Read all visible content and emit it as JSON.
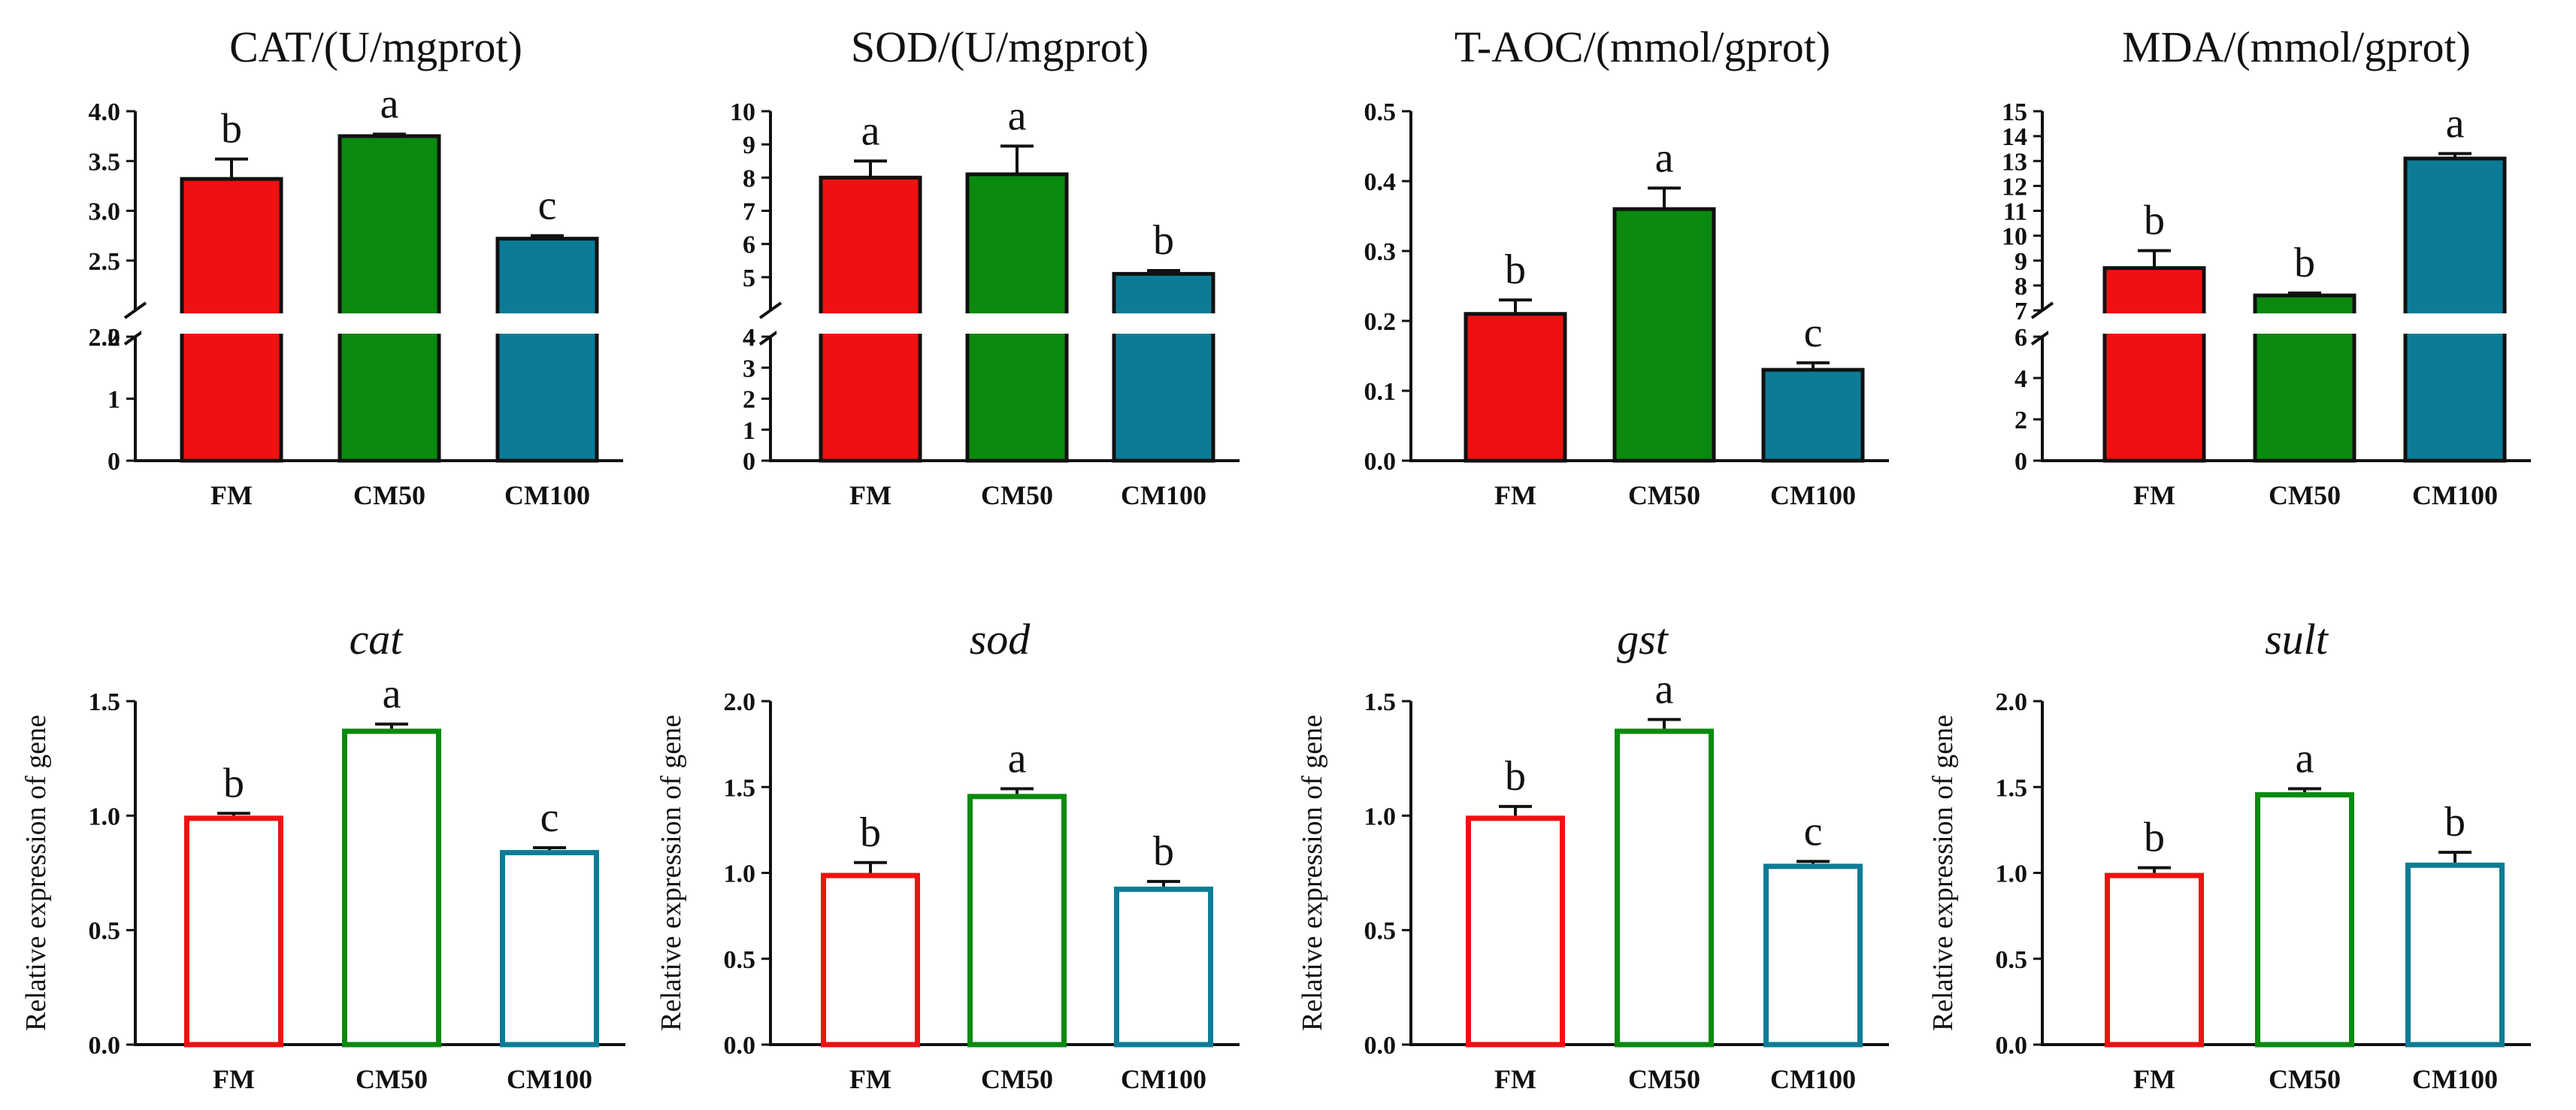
{
  "colors": {
    "FM": "#ee1111",
    "CM50": "#0a8a0f",
    "CM100": "#0c7c96",
    "axis": "#111111"
  },
  "chart_data": [
    {
      "type": "bar",
      "title": "CAT/(U/mgprot)",
      "italic": false,
      "filled": true,
      "categories": [
        "FM",
        "CM50",
        "CM100"
      ],
      "values": [
        3.32,
        3.75,
        2.72
      ],
      "errors": [
        0.2,
        0.02,
        0.03
      ],
      "sig": [
        "b",
        "a",
        "c"
      ],
      "ylabel": "",
      "break": {
        "lower": [
          0,
          2
        ],
        "lowerTicks": [
          0,
          1,
          2
        ],
        "lowerTickLabels": [
          "0",
          "1",
          "2"
        ],
        "upper": [
          2.0,
          4.0
        ],
        "upperTicks": [
          2.0,
          2.5,
          3.0,
          3.5,
          4.0
        ],
        "upperTickLabels": [
          "2.0",
          "2.5",
          "3.0",
          "3.5",
          "4.0"
        ]
      }
    },
    {
      "type": "bar",
      "title": "SOD/(U/mgprot)",
      "italic": false,
      "filled": true,
      "categories": [
        "FM",
        "CM50",
        "CM100"
      ],
      "values": [
        8.0,
        8.1,
        5.1
      ],
      "errors": [
        0.5,
        0.85,
        0.1
      ],
      "sig": [
        "a",
        "a",
        "b"
      ],
      "ylabel": "",
      "break": {
        "lower": [
          0,
          4
        ],
        "lowerTicks": [
          0,
          1,
          2,
          3,
          4
        ],
        "lowerTickLabels": [
          "0",
          "1",
          "2",
          "3",
          "4"
        ],
        "upper": [
          4,
          10
        ],
        "upperTicks": [
          4,
          5,
          6,
          7,
          8,
          9,
          10
        ],
        "upperTickLabels": [
          "4",
          "5",
          "6",
          "7",
          "8",
          "9",
          "10"
        ]
      }
    },
    {
      "type": "bar",
      "title": "T-AOC/(mmol/gprot)",
      "italic": false,
      "filled": true,
      "categories": [
        "FM",
        "CM50",
        "CM100"
      ],
      "values": [
        0.21,
        0.36,
        0.13
      ],
      "errors": [
        0.02,
        0.03,
        0.01
      ],
      "sig": [
        "b",
        "a",
        "c"
      ],
      "ylabel": "",
      "ylim": [
        0,
        0.5
      ],
      "yticks": [
        0.0,
        0.1,
        0.2,
        0.3,
        0.4,
        0.5
      ],
      "ytickLabels": [
        "0.0",
        "0.1",
        "0.2",
        "0.3",
        "0.4",
        "0.5"
      ]
    },
    {
      "type": "bar",
      "title": "MDA/(mmol/gprot)",
      "italic": false,
      "filled": true,
      "categories": [
        "FM",
        "CM50",
        "CM100"
      ],
      "values": [
        8.7,
        7.6,
        13.1
      ],
      "errors": [
        0.7,
        0.1,
        0.2
      ],
      "sig": [
        "b",
        "b",
        "a"
      ],
      "ylabel": "",
      "break": {
        "lower": [
          0,
          6
        ],
        "lowerTicks": [
          0,
          2,
          4,
          6
        ],
        "lowerTickLabels": [
          "0",
          "2",
          "4",
          "6"
        ],
        "upper": [
          7,
          15
        ],
        "upperTicks": [
          7,
          8,
          9,
          10,
          11,
          12,
          13,
          14,
          15
        ],
        "upperTickLabels": [
          "7",
          "8",
          "9",
          "10",
          "11",
          "12",
          "13",
          "14",
          "15"
        ]
      }
    },
    {
      "type": "bar",
      "title": "cat",
      "italic": true,
      "filled": false,
      "categories": [
        "FM",
        "CM50",
        "CM100"
      ],
      "values": [
        1.0,
        1.38,
        0.85
      ],
      "errors": [
        0.01,
        0.02,
        0.01
      ],
      "sig": [
        "b",
        "a",
        "c"
      ],
      "ylabel": "Relative expression of gene",
      "ylim": [
        0,
        1.5
      ],
      "yticks": [
        0.0,
        0.5,
        1.0,
        1.5
      ],
      "ytickLabels": [
        "0.0",
        "0.5",
        "1.0",
        "1.5"
      ]
    },
    {
      "type": "bar",
      "title": "sod",
      "italic": true,
      "filled": false,
      "categories": [
        "FM",
        "CM50",
        "CM100"
      ],
      "values": [
        1.0,
        1.46,
        0.92
      ],
      "errors": [
        0.06,
        0.03,
        0.03
      ],
      "sig": [
        "b",
        "a",
        "b"
      ],
      "ylabel": "Relative expression of gene",
      "ylim": [
        0,
        2.0
      ],
      "yticks": [
        0.0,
        0.5,
        1.0,
        1.5,
        2.0
      ],
      "ytickLabels": [
        "0.0",
        "0.5",
        "1.0",
        "1.5",
        "2.0"
      ]
    },
    {
      "type": "bar",
      "title": "gst",
      "italic": true,
      "filled": false,
      "categories": [
        "FM",
        "CM50",
        "CM100"
      ],
      "values": [
        1.0,
        1.38,
        0.79
      ],
      "errors": [
        0.04,
        0.04,
        0.01
      ],
      "sig": [
        "b",
        "a",
        "c"
      ],
      "ylabel": "Relative expression of gene",
      "ylim": [
        0,
        1.5
      ],
      "yticks": [
        0.0,
        0.5,
        1.0,
        1.5
      ],
      "ytickLabels": [
        "0.0",
        "0.5",
        "1.0",
        "1.5"
      ]
    },
    {
      "type": "bar",
      "title": "sult",
      "italic": true,
      "filled": false,
      "categories": [
        "FM",
        "CM50",
        "CM100"
      ],
      "values": [
        1.0,
        1.47,
        1.06
      ],
      "errors": [
        0.03,
        0.02,
        0.06
      ],
      "sig": [
        "b",
        "a",
        "b"
      ],
      "ylabel": "Relative expression of gene",
      "ylim": [
        0,
        2.0
      ],
      "yticks": [
        0.0,
        0.5,
        1.0,
        1.5,
        2.0
      ],
      "ytickLabels": [
        "0.0",
        "0.5",
        "1.0",
        "1.5",
        "2.0"
      ]
    }
  ]
}
